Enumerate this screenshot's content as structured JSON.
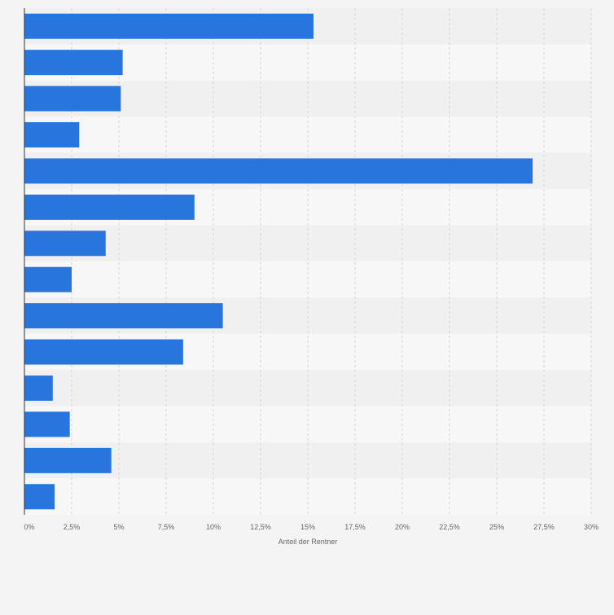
{
  "chart_data": {
    "type": "bar",
    "orientation": "horizontal",
    "categories": [
      "",
      "",
      "",
      "",
      "",
      "",
      "",
      "",
      "",
      "",
      "",
      "",
      "",
      ""
    ],
    "values": [
      15.3,
      5.2,
      5.1,
      2.9,
      26.9,
      9.0,
      4.3,
      2.5,
      10.5,
      8.4,
      1.5,
      2.4,
      4.6,
      1.6
    ],
    "xlabel": "Anteil der Rentner",
    "ylabel": "",
    "xlim": [
      0,
      30
    ],
    "x_ticks": [
      0,
      2.5,
      5,
      7.5,
      10,
      12.5,
      15,
      17.5,
      20,
      22.5,
      25,
      27.5,
      30
    ],
    "x_tick_labels": [
      "0%",
      "2,5%",
      "5%",
      "7,5%",
      "10%",
      "12,5%",
      "15%",
      "17,5%",
      "20%",
      "22,5%",
      "25%",
      "27,5%",
      "30%"
    ],
    "grid": true,
    "legend": "none",
    "colors": {
      "bar": "#2876dd",
      "band_light": "#f7f7f8",
      "band_dark": "#f0f0f1",
      "grid": "#d6d6d6",
      "axis": "#333333",
      "tick_text": "#666666",
      "page_bg": "#f4f4f4"
    }
  }
}
